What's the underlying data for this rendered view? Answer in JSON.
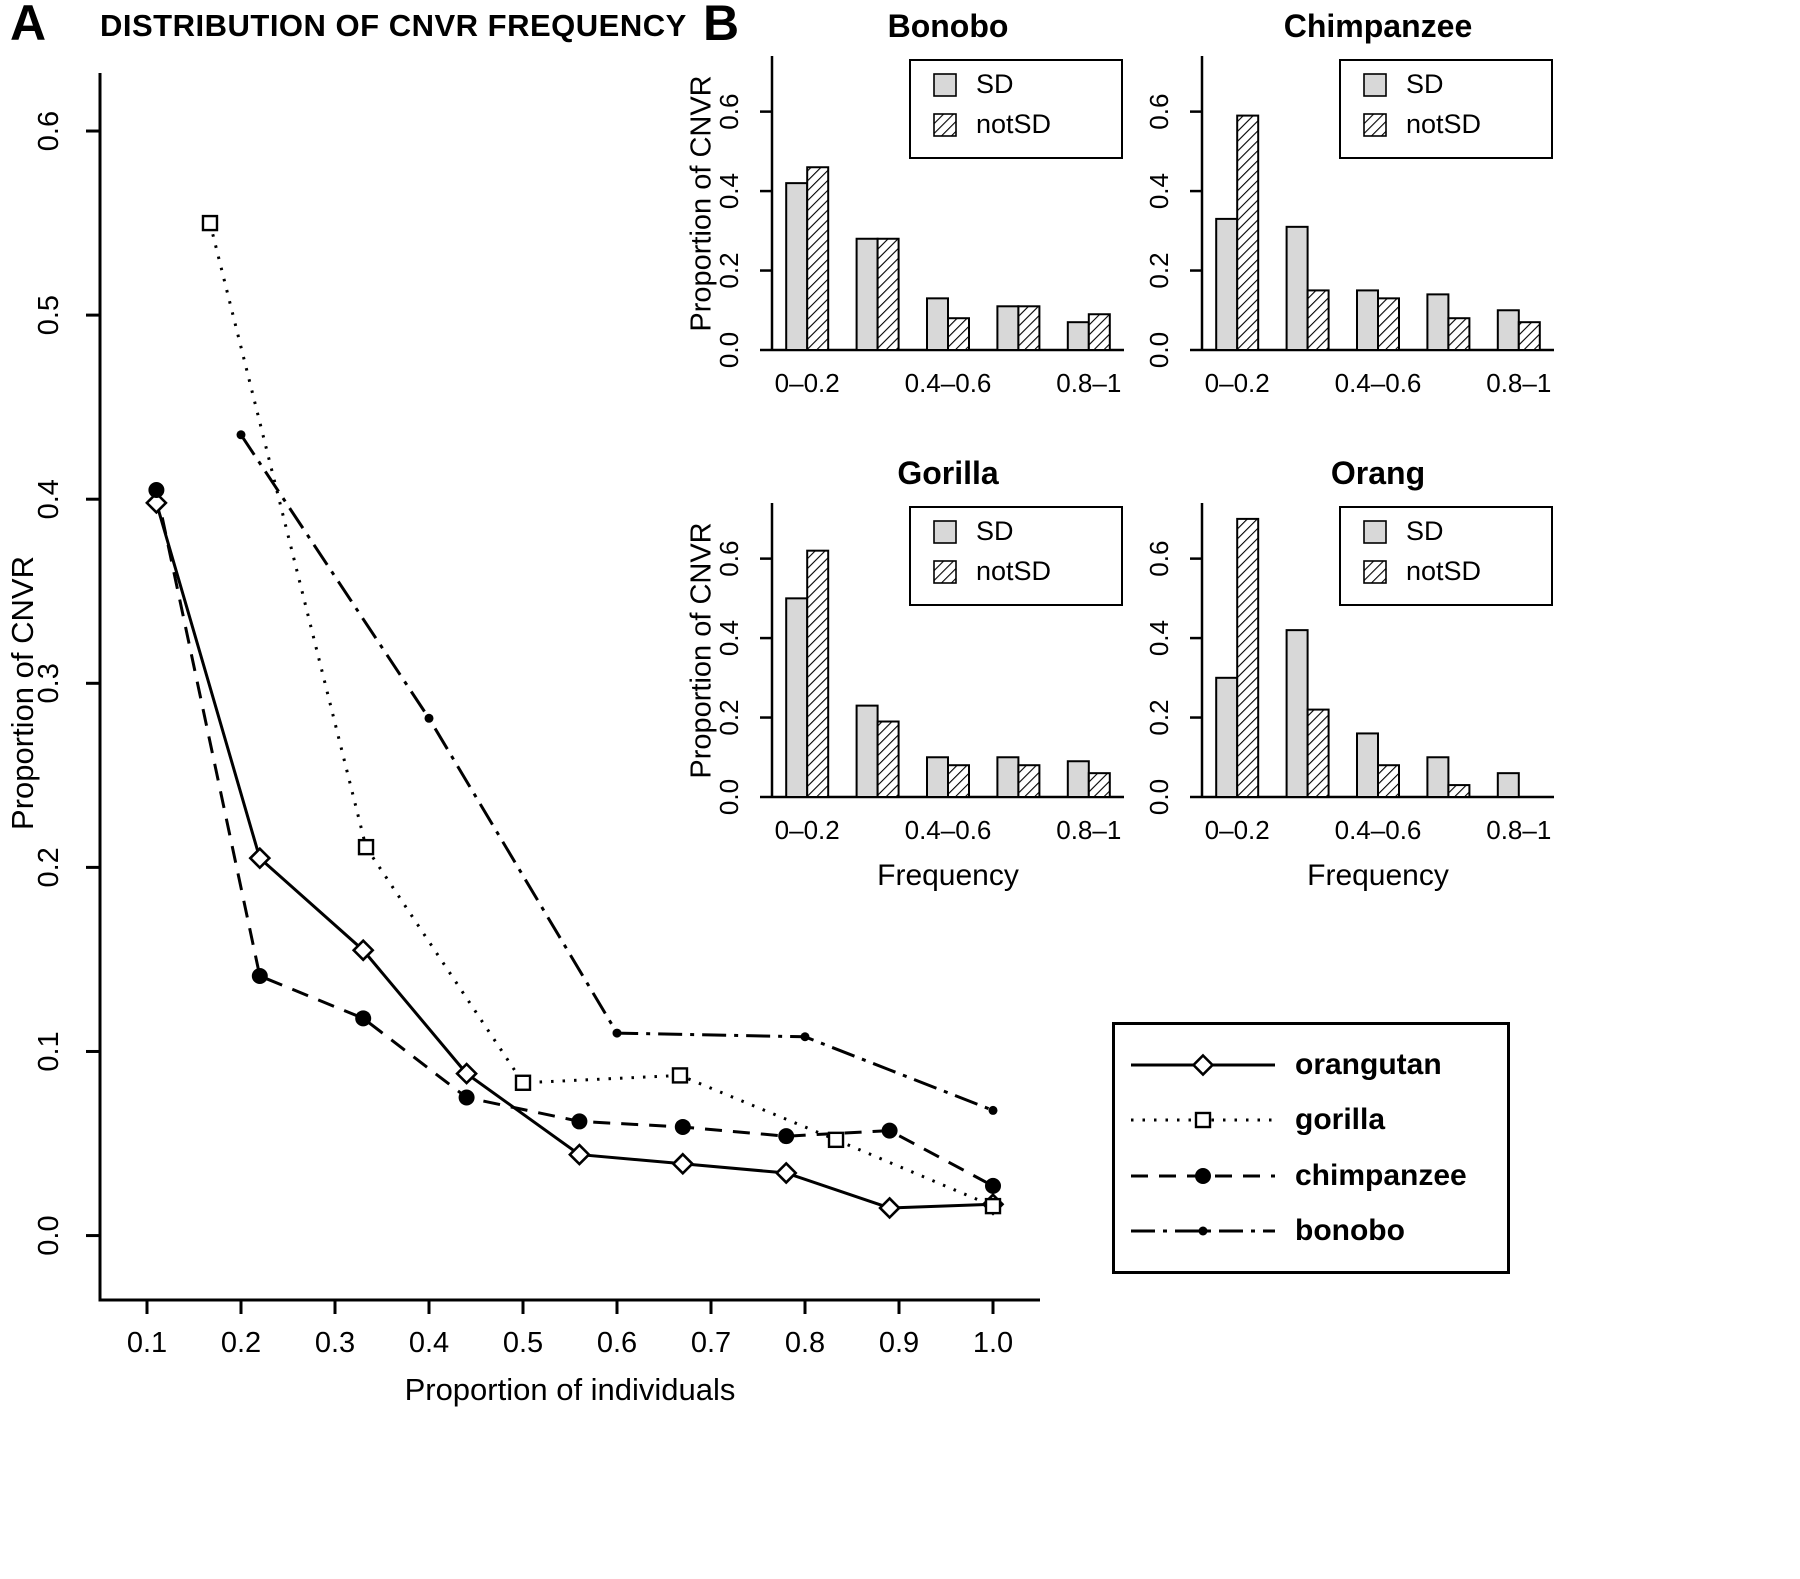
{
  "figure": {
    "panel_a_label": "A",
    "panel_b_label": "B"
  },
  "colors": {
    "ink": "#000000",
    "background": "#ffffff",
    "bar_sd_fill": "#d8d8d8"
  },
  "chart_data": [
    {
      "type": "line",
      "panel": "A",
      "title": "DISTRIBUTION OF CNVR FREQUENCY",
      "xlabel": "Proportion of individuals",
      "ylabel": "Proportion of CNVR",
      "xlim": [
        0.05,
        1.05
      ],
      "ylim": [
        -0.035,
        0.625
      ],
      "xticks": [
        0.1,
        0.2,
        0.3,
        0.4,
        0.5,
        0.6,
        0.7,
        0.8,
        0.9,
        1.0
      ],
      "yticks": [
        0.0,
        0.1,
        0.2,
        0.3,
        0.4,
        0.5,
        0.6
      ],
      "grid": false,
      "legend_position": "bottom-right-outside",
      "series": [
        {
          "name": "orangutan",
          "line": "solid",
          "marker": "open-diamond",
          "x": [
            0.11,
            0.22,
            0.33,
            0.44,
            0.56,
            0.67,
            0.78,
            0.89,
            1.0
          ],
          "y": [
            0.398,
            0.205,
            0.155,
            0.088,
            0.044,
            0.039,
            0.034,
            0.015,
            0.017
          ]
        },
        {
          "name": "gorilla",
          "line": "dotted",
          "marker": "open-square",
          "x": [
            0.167,
            0.333,
            0.5,
            0.667,
            0.833,
            1.0
          ],
          "y": [
            0.55,
            0.211,
            0.083,
            0.087,
            0.052,
            0.016
          ]
        },
        {
          "name": "chimpanzee",
          "line": "dashed",
          "marker": "filled-circle",
          "x": [
            0.11,
            0.22,
            0.33,
            0.44,
            0.56,
            0.67,
            0.78,
            0.89,
            1.0
          ],
          "y": [
            0.405,
            0.141,
            0.118,
            0.075,
            0.062,
            0.059,
            0.054,
            0.057,
            0.027
          ]
        },
        {
          "name": "bonobo",
          "line": "dashdot",
          "marker": "small-filled-circle",
          "x": [
            0.2,
            0.4,
            0.6,
            0.8,
            1.0
          ],
          "y": [
            0.435,
            0.281,
            0.11,
            0.108,
            0.068
          ]
        }
      ]
    },
    {
      "type": "bar",
      "panel": "B",
      "title": "Bonobo",
      "xlabel": "",
      "ylabel": "Proportion of CNVR",
      "categories": [
        "0–0.2",
        "0.2–0.4",
        "0.4–0.6",
        "0.6–0.8",
        "0.8–1"
      ],
      "visible_tick_labels": [
        "0–0.2",
        "0.4–0.6",
        "0.8–1"
      ],
      "yticks": [
        0.0,
        0.2,
        0.4,
        0.6
      ],
      "ylim": [
        0,
        0.74
      ],
      "legend": [
        "SD",
        "notSD"
      ],
      "series": [
        {
          "name": "SD",
          "values": [
            0.42,
            0.28,
            0.13,
            0.11,
            0.07
          ]
        },
        {
          "name": "notSD",
          "values": [
            0.46,
            0.28,
            0.08,
            0.11,
            0.09
          ]
        }
      ]
    },
    {
      "type": "bar",
      "panel": "B",
      "title": "Chimpanzee",
      "xlabel": "",
      "ylabel": "",
      "categories": [
        "0–0.2",
        "0.2–0.4",
        "0.4–0.6",
        "0.6–0.8",
        "0.8–1"
      ],
      "visible_tick_labels": [
        "0–0.2",
        "0.4–0.6",
        "0.8–1"
      ],
      "yticks": [
        0.0,
        0.2,
        0.4,
        0.6
      ],
      "ylim": [
        0,
        0.74
      ],
      "legend": [
        "SD",
        "notSD"
      ],
      "series": [
        {
          "name": "SD",
          "values": [
            0.33,
            0.31,
            0.15,
            0.14,
            0.1
          ]
        },
        {
          "name": "notSD",
          "values": [
            0.59,
            0.15,
            0.13,
            0.08,
            0.07
          ]
        }
      ]
    },
    {
      "type": "bar",
      "panel": "B",
      "title": "Gorilla",
      "xlabel": "Frequency",
      "ylabel": "Proportion of CNVR",
      "categories": [
        "0–0.2",
        "0.2–0.4",
        "0.4–0.6",
        "0.6–0.8",
        "0.8–1"
      ],
      "visible_tick_labels": [
        "0–0.2",
        "0.4–0.6",
        "0.8–1"
      ],
      "yticks": [
        0.0,
        0.2,
        0.4,
        0.6
      ],
      "ylim": [
        0,
        0.74
      ],
      "legend": [
        "SD",
        "notSD"
      ],
      "series": [
        {
          "name": "SD",
          "values": [
            0.5,
            0.23,
            0.1,
            0.1,
            0.09
          ]
        },
        {
          "name": "notSD",
          "values": [
            0.62,
            0.19,
            0.08,
            0.08,
            0.06
          ]
        }
      ]
    },
    {
      "type": "bar",
      "panel": "B",
      "title": "Orang",
      "xlabel": "Frequency",
      "ylabel": "",
      "categories": [
        "0–0.2",
        "0.2–0.4",
        "0.4–0.6",
        "0.6–0.8",
        "0.8–1"
      ],
      "visible_tick_labels": [
        "0–0.2",
        "0.4–0.6",
        "0.8–1"
      ],
      "yticks": [
        0.0,
        0.2,
        0.4,
        0.6
      ],
      "ylim": [
        0,
        0.74
      ],
      "legend": [
        "SD",
        "notSD"
      ],
      "series": [
        {
          "name": "SD",
          "values": [
            0.3,
            0.42,
            0.16,
            0.1,
            0.06
          ]
        },
        {
          "name": "notSD",
          "values": [
            0.7,
            0.22,
            0.08,
            0.03,
            0.0
          ]
        }
      ]
    }
  ],
  "legend": {
    "entries": [
      {
        "label": "orangutan",
        "line": "solid",
        "marker": "open-diamond"
      },
      {
        "label": "gorilla",
        "line": "dotted",
        "marker": "open-square"
      },
      {
        "label": "chimpanzee",
        "line": "dashed",
        "marker": "filled-circle"
      },
      {
        "label": "bonobo",
        "line": "dashdot",
        "marker": "small-filled-circle"
      }
    ]
  }
}
